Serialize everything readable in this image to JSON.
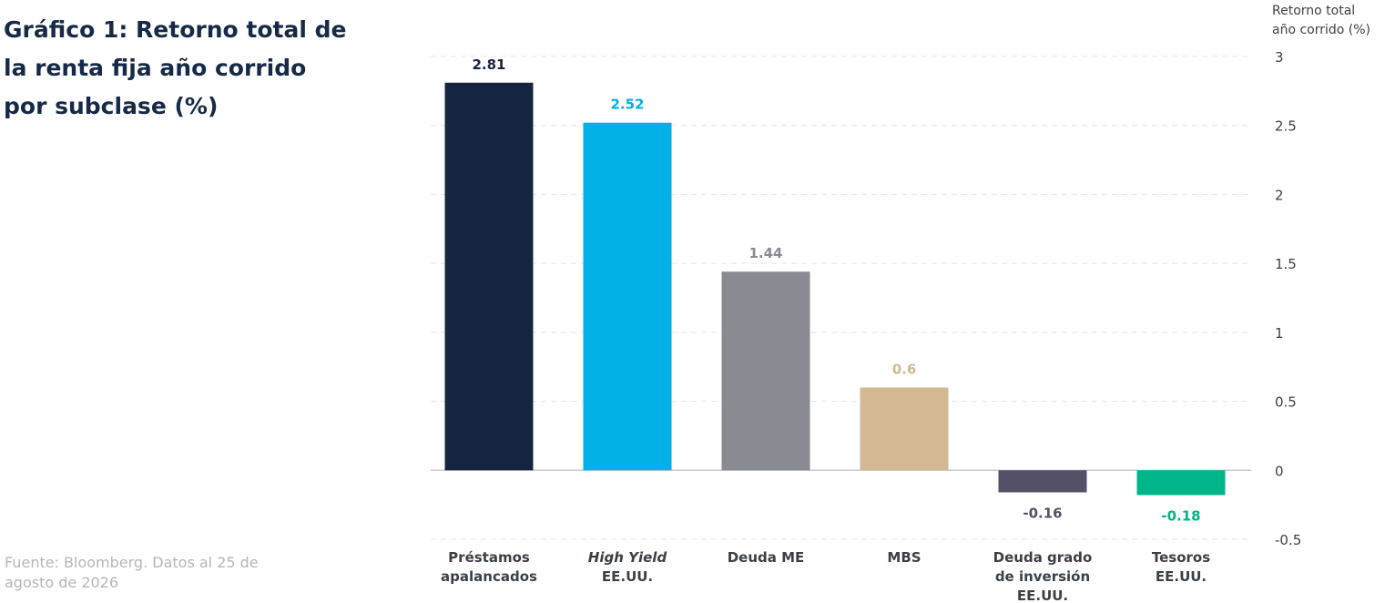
{
  "title_lines": [
    "Gráfico 1:  Retorno total de",
    "la renta fija año corrido",
    "por subclase (%)"
  ],
  "source_lines": [
    "Fuente: Bloomberg. Datos al 25 de",
    "agosto de 2026"
  ],
  "chart_data": {
    "type": "bar",
    "title": "Gráfico 1:  Retorno total de la renta fija año corrido por subclase (%)",
    "ylabel_lines": [
      "Retorno total",
      "año corrido (%)"
    ],
    "ylim": [
      -0.5,
      3
    ],
    "yticks": [
      3,
      2.5,
      2,
      1.5,
      1,
      0.5,
      0,
      -0.5
    ],
    "y_axis_position": "right",
    "grid": "horizontal dashed",
    "categories": [
      [
        "Préstamos",
        "apalancados"
      ],
      [
        "High Yield",
        "EE.UU."
      ],
      [
        "Deuda ME"
      ],
      [
        "MBS"
      ],
      [
        "Deuda grado",
        "de inversión",
        "EE.UU."
      ],
      [
        "Tesoros",
        "EE.UU."
      ]
    ],
    "category_italic_first_line": [
      false,
      true,
      false,
      false,
      false,
      false
    ],
    "values": [
      2.81,
      2.52,
      1.44,
      0.6,
      -0.16,
      -0.18
    ],
    "value_labels": [
      "2.81",
      "2.52",
      "1.44",
      "0.6",
      "-0.16",
      "-0.18"
    ],
    "colors": [
      "#16253f",
      "#00b0e6",
      "#898b93",
      "#d3b894",
      "#545068",
      "#00b48a"
    ],
    "label_colors": [
      "#16253f",
      "#00b0e6",
      "#898b93",
      "#d3b894",
      "#545068",
      "#00b48a"
    ]
  }
}
